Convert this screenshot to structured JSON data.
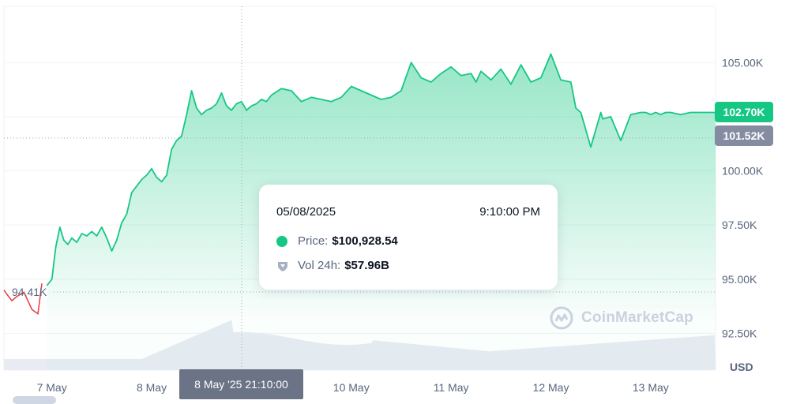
{
  "chart_data": {
    "type": "area",
    "currency_label": "USD",
    "y_ticks": [
      "92.50K",
      "95.00K",
      "97.50K",
      "100.00K",
      "102.50K",
      "105.00K"
    ],
    "y_tick_values": [
      92500,
      95000,
      97500,
      100000,
      102500,
      105000
    ],
    "ylim": [
      90800,
      107600
    ],
    "x_tick_labels": [
      "7 May",
      "8 May",
      "9 May",
      "10 May",
      "11 May",
      "12 May",
      "13 May"
    ],
    "x_tick_days": [
      7,
      8,
      9,
      10,
      11,
      12,
      13
    ],
    "xlim_days": [
      6.52,
      13.65
    ],
    "open_price_label": "94.41K",
    "open_price": 94410,
    "last_price_label": "102.70K",
    "last_price": 102700,
    "reference_price_label": "101.52K",
    "reference_price": 101520,
    "series": [
      {
        "x": [
          6.52,
          6.55,
          6.6,
          6.65,
          6.72,
          6.8,
          6.86,
          6.9,
          6.95,
          7.0,
          7.04,
          7.08,
          7.12,
          7.16,
          7.2,
          7.25,
          7.3,
          7.35,
          7.4,
          7.45,
          7.5,
          7.55,
          7.6,
          7.65,
          7.7,
          7.75,
          7.8,
          7.85,
          7.9,
          7.95,
          8.0,
          8.05,
          8.1,
          8.15,
          8.2,
          8.25,
          8.3,
          8.35,
          8.4,
          8.45,
          8.5,
          8.55,
          8.6,
          8.65,
          8.7,
          8.75,
          8.8,
          8.85,
          8.9,
          8.95,
          9.0,
          9.05,
          9.1,
          9.15,
          9.2,
          9.3,
          9.4,
          9.5,
          9.6,
          9.7,
          9.8,
          9.9,
          10.0,
          10.1,
          10.2,
          10.3,
          10.4,
          10.5,
          10.6,
          10.7,
          10.8,
          10.9,
          11.0,
          11.1,
          11.2,
          11.25,
          11.3,
          11.4,
          11.5,
          11.6,
          11.7,
          11.8,
          11.9,
          12.0,
          12.1,
          12.2,
          12.25,
          12.3,
          12.4,
          12.5,
          12.52,
          12.6,
          12.7,
          12.8,
          12.9,
          12.92,
          12.95,
          13.0,
          13.05,
          13.1,
          13.15,
          13.2,
          13.3,
          13.4,
          13.5,
          13.6,
          13.65
        ],
        "y": [
          94.5,
          94.3,
          94.0,
          94.2,
          94.4,
          93.6,
          93.4,
          94.8,
          94.7,
          95.0,
          96.5,
          97.4,
          96.8,
          96.6,
          96.9,
          96.7,
          97.1,
          97.0,
          97.2,
          97.0,
          97.4,
          96.9,
          96.3,
          96.8,
          97.6,
          98.0,
          99.0,
          99.3,
          99.6,
          99.8,
          100.1,
          99.7,
          99.5,
          99.8,
          101.0,
          101.4,
          101.6,
          102.6,
          103.7,
          102.9,
          102.6,
          102.8,
          102.9,
          103.1,
          103.6,
          103.0,
          102.8,
          103.1,
          103.2,
          102.8,
          103.0,
          103.1,
          103.3,
          103.2,
          103.5,
          103.8,
          103.7,
          103.2,
          103.4,
          103.3,
          103.2,
          103.4,
          103.9,
          103.7,
          103.5,
          103.3,
          103.4,
          103.7,
          105.0,
          104.3,
          104.1,
          104.5,
          104.8,
          104.4,
          104.5,
          104.1,
          104.6,
          104.2,
          104.7,
          104.0,
          104.9,
          104.1,
          104.3,
          105.4,
          104.2,
          104.1,
          102.9,
          102.7,
          101.1,
          102.7,
          102.4,
          102.5,
          101.4,
          102.6,
          102.7,
          102.7,
          102.7,
          102.6,
          102.7,
          102.6,
          102.7,
          102.7,
          102.6,
          102.7,
          102.7,
          102.7,
          102.7
        ]
      }
    ],
    "annotations": []
  },
  "hover": {
    "x_label": "8 May '25 21:10:00",
    "date": "05/08/2025",
    "time": "9:10:00 PM",
    "price_label": "Price:",
    "price_value": "$100,928.54",
    "volume_label": "Vol 24h:",
    "volume_value": "$57.96B"
  },
  "watermark": "CoinMarketCap",
  "colors": {
    "line": "#16c784",
    "negative": "#ea3943",
    "grid": "#eff2f5",
    "axis_text": "#58667e",
    "volume": "#e8ecf2",
    "last_price_tag": "#16c784",
    "reference_tag": "#858ca2",
    "hover_tag": "#6b7486"
  }
}
